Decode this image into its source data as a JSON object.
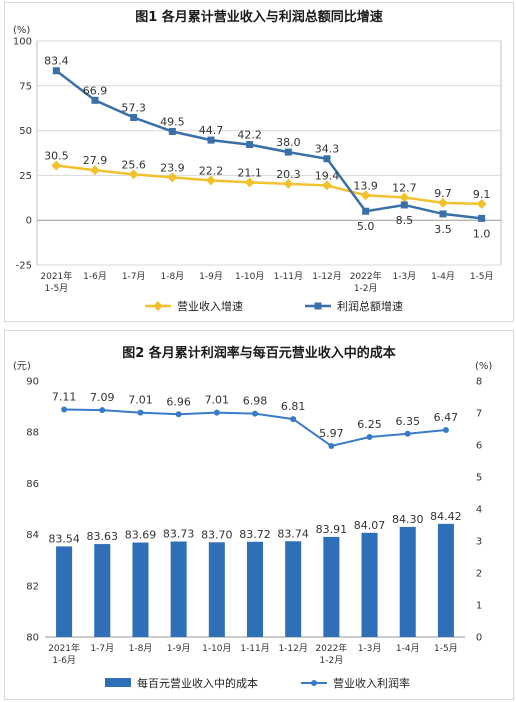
{
  "chart_data": [
    {
      "type": "line",
      "title": "图1  各月累计营业收入与利润总额同比增速",
      "ylabel": "(%)",
      "ylim": [
        -25,
        100
      ],
      "yticks": [
        "100",
        "75",
        "50",
        "25",
        "0",
        "-25"
      ],
      "categories": [
        {
          "line1": "2021年",
          "line2": "1-5月"
        },
        {
          "line1": "1-6月",
          "line2": ""
        },
        {
          "line1": "1-7月",
          "line2": ""
        },
        {
          "line1": "1-8月",
          "line2": ""
        },
        {
          "line1": "1-9月",
          "line2": ""
        },
        {
          "line1": "1-10月",
          "line2": ""
        },
        {
          "line1": "1-11月",
          "line2": ""
        },
        {
          "line1": "1-12月",
          "line2": ""
        },
        {
          "line1": "2022年",
          "line2": "1-2月"
        },
        {
          "line1": "1-3月",
          "line2": ""
        },
        {
          "line1": "1-4月",
          "line2": ""
        },
        {
          "line1": "1-5月",
          "line2": ""
        }
      ],
      "series": [
        {
          "name": "营业收入增速",
          "color": "#f2c12e",
          "marker": "diamond",
          "values": [
            30.5,
            27.9,
            25.6,
            23.9,
            22.2,
            21.1,
            20.3,
            19.4,
            13.9,
            12.7,
            9.7,
            9.1
          ],
          "labels": [
            "30.5",
            "27.9",
            "25.6",
            "23.9",
            "22.2",
            "21.1",
            "20.3",
            "19.4",
            "13.9",
            "12.7",
            "9.7",
            "9.1"
          ]
        },
        {
          "name": "利润总额增速",
          "color": "#3a6fa8",
          "marker": "square",
          "values": [
            83.4,
            66.9,
            57.3,
            49.5,
            44.7,
            42.2,
            38.0,
            34.3,
            5.0,
            8.5,
            3.5,
            1.0
          ],
          "labels": [
            "83.4",
            "66.9",
            "57.3",
            "49.5",
            "44.7",
            "42.2",
            "38.0",
            "34.3",
            "5.0",
            "8.5",
            "3.5",
            "1.0"
          ]
        }
      ],
      "grid": true,
      "legend_position": "bottom"
    },
    {
      "type": "bar+line",
      "title": "图2  各月累计利润率与每百元营业收入中的成本",
      "ylabel_left": "(元)",
      "ylabel_right": "(%)",
      "ylim_left": [
        80,
        90
      ],
      "ylim_right": [
        0,
        8
      ],
      "yticks_left": [
        "90",
        "88",
        "86",
        "84",
        "82",
        "80"
      ],
      "yticks_right": [
        "8",
        "7",
        "6",
        "5",
        "4",
        "3",
        "2",
        "1",
        "0"
      ],
      "categories": [
        {
          "line1": "2021年",
          "line2": "1-6月"
        },
        {
          "line1": "1-7月",
          "line2": ""
        },
        {
          "line1": "1-8月",
          "line2": ""
        },
        {
          "line1": "1-9月",
          "line2": ""
        },
        {
          "line1": "1-10月",
          "line2": ""
        },
        {
          "line1": "1-11月",
          "line2": ""
        },
        {
          "line1": "1-12月",
          "line2": ""
        },
        {
          "line1": "2022年",
          "line2": "1-2月"
        },
        {
          "line1": "1-3月",
          "line2": ""
        },
        {
          "line1": "1-4月",
          "line2": ""
        },
        {
          "line1": "1-5月",
          "line2": ""
        }
      ],
      "series": [
        {
          "name": "每百元营业收入中的成本",
          "kind": "bar",
          "axis": "left",
          "color": "#2e6fb7",
          "values": [
            83.54,
            83.63,
            83.69,
            83.73,
            83.7,
            83.72,
            83.74,
            83.91,
            84.07,
            84.3,
            84.42
          ],
          "labels": [
            "83.54",
            "83.63",
            "83.69",
            "83.73",
            "83.70",
            "83.72",
            "83.74",
            "83.91",
            "84.07",
            "84.30",
            "84.42"
          ]
        },
        {
          "name": "营业收入利润率",
          "kind": "line",
          "axis": "right",
          "color": "#3a7bc8",
          "values": [
            7.11,
            7.09,
            7.01,
            6.96,
            7.01,
            6.98,
            6.81,
            5.97,
            6.25,
            6.35,
            6.47
          ],
          "labels": [
            "7.11",
            "7.09",
            "7.01",
            "6.96",
            "7.01",
            "6.98",
            "6.81",
            "5.97",
            "6.25",
            "6.35",
            "6.47"
          ]
        }
      ],
      "grid": false,
      "legend_position": "bottom"
    }
  ]
}
